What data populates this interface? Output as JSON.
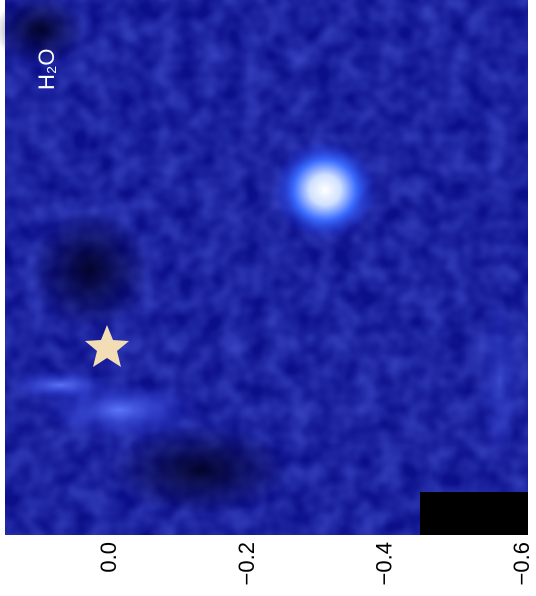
{
  "chart_data": {
    "type": "image",
    "title": "H₂O",
    "xlim": [
      0.15,
      -0.61
    ],
    "xticks": [
      {
        "value": 0.0,
        "label": "0.0"
      },
      {
        "value": -0.2,
        "label": "−0.2"
      },
      {
        "value": -0.4,
        "label": "−0.4"
      },
      {
        "value": -0.6,
        "label": "−0.6"
      }
    ]
  }
}
